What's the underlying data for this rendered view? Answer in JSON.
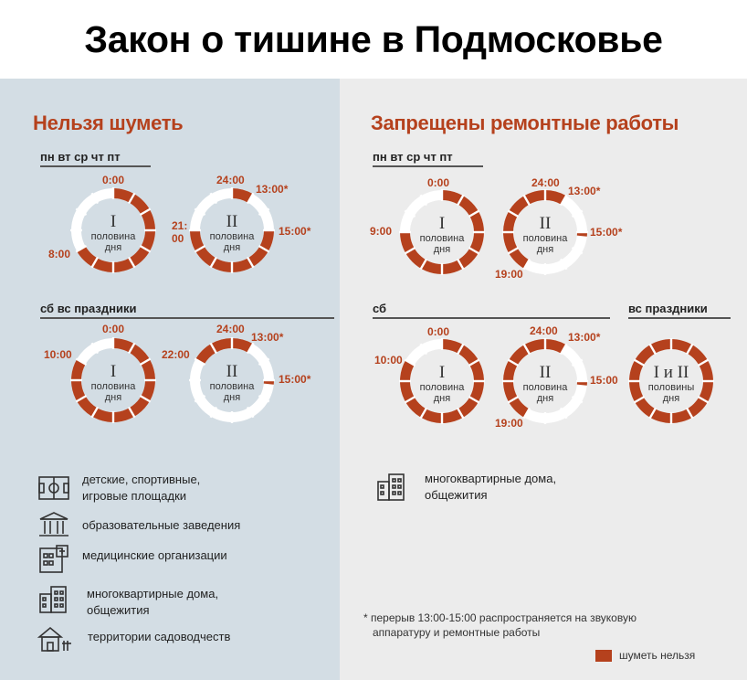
{
  "title": "Закон о тишине в Подмосковье",
  "colors": {
    "accent": "#b5411d",
    "ring_bg": "#ffffff",
    "panel_left": "#d3dde4",
    "panel_right": "#ececec"
  },
  "left": {
    "section_title": "Нельзя шуметь",
    "weekdays": {
      "days_label": "пн  вт  ср  чт  пт",
      "dial1": {
        "numeral": "I",
        "text1": "половина",
        "text2": "дня",
        "noise_ranges": [
          [
            0,
            8
          ]
        ],
        "labels": {
          "top": "0:00",
          "side": "8:00"
        }
      },
      "dial2": {
        "numeral": "II",
        "text1": "половина",
        "text2": "дня",
        "noise_ranges": [
          [
            12,
            13
          ],
          [
            15,
            21
          ]
        ],
        "labels": {
          "top": "24:00",
          "t1": "13:00*",
          "t2": "15:00*",
          "side_a": "21:",
          "side_b": "00"
        }
      }
    },
    "weekend": {
      "days_label": "сб  вс  праздники",
      "dial1": {
        "numeral": "I",
        "text1": "половина",
        "text2": "дня",
        "noise_ranges": [
          [
            0,
            10
          ]
        ],
        "labels": {
          "top": "0:00",
          "side": "10:00"
        }
      },
      "dial2": {
        "numeral": "II",
        "text1": "половина",
        "text2": "дня",
        "noise_ranges": [
          [
            12,
            13
          ],
          [
            15,
            15.2
          ],
          [
            22,
            24
          ]
        ],
        "labels": {
          "top": "24:00",
          "t1": "13:00*",
          "t2": "15:00*",
          "side": "22:00"
        }
      }
    },
    "places": [
      {
        "icon": "playground-icon",
        "line1": "детские, спортивные,",
        "line2": "игровые площадки"
      },
      {
        "icon": "school-icon",
        "line1": "образовательные заведения",
        "line2": ""
      },
      {
        "icon": "hospital-icon",
        "line1": "медицинские организации",
        "line2": ""
      },
      {
        "icon": "apartment-building-icon",
        "line1": "многоквартирные дома,",
        "line2": "общежития"
      },
      {
        "icon": "garden-house-icon",
        "line1": "территории садоводчеств",
        "line2": ""
      }
    ]
  },
  "right": {
    "section_title": "Запрещены ремонтные работы",
    "weekdays": {
      "days_label": "пн  вт  ср  чт  пт",
      "dial1": {
        "numeral": "I",
        "text1": "половина",
        "text2": "дня",
        "noise_ranges": [
          [
            0,
            9
          ]
        ],
        "labels": {
          "top": "0:00",
          "side": "9:00"
        }
      },
      "dial2": {
        "numeral": "II",
        "text1": "половина",
        "text2": "дня",
        "noise_ranges": [
          [
            12,
            13
          ],
          [
            15,
            15.2
          ],
          [
            19,
            24
          ]
        ],
        "labels": {
          "top": "24:00",
          "t1": "13:00*",
          "t2": "15:00*",
          "bottom": "19:00"
        }
      }
    },
    "saturday": {
      "days_label": "сб",
      "dial1": {
        "numeral": "I",
        "text1": "половина",
        "text2": "дня",
        "noise_ranges": [
          [
            0,
            10
          ]
        ],
        "labels": {
          "top": "0:00",
          "side": "10:00"
        }
      },
      "dial2": {
        "numeral": "II",
        "text1": "половина",
        "text2": "дня",
        "noise_ranges": [
          [
            12,
            13
          ],
          [
            15,
            15.2
          ],
          [
            19,
            24
          ]
        ],
        "labels": {
          "top": "24:00",
          "t1": "13:00*",
          "t2": "15:00",
          "bottom": "19:00"
        }
      }
    },
    "sunday": {
      "days_label": "вс  праздники",
      "dial": {
        "numeral": "I и II",
        "text1": "половины",
        "text2": "дня",
        "noise_ranges": [
          [
            0,
            12
          ]
        ]
      }
    },
    "places": [
      {
        "icon": "apartment-building-icon",
        "line1": "многоквартирные дома,",
        "line2": "общежития"
      }
    ],
    "footnote": {
      "line1": "* перерыв 13:00-15:00 распространяется на звуковую",
      "line2": "аппаратуру и ремонтные работы"
    },
    "legend": "шуметь нельзя"
  }
}
